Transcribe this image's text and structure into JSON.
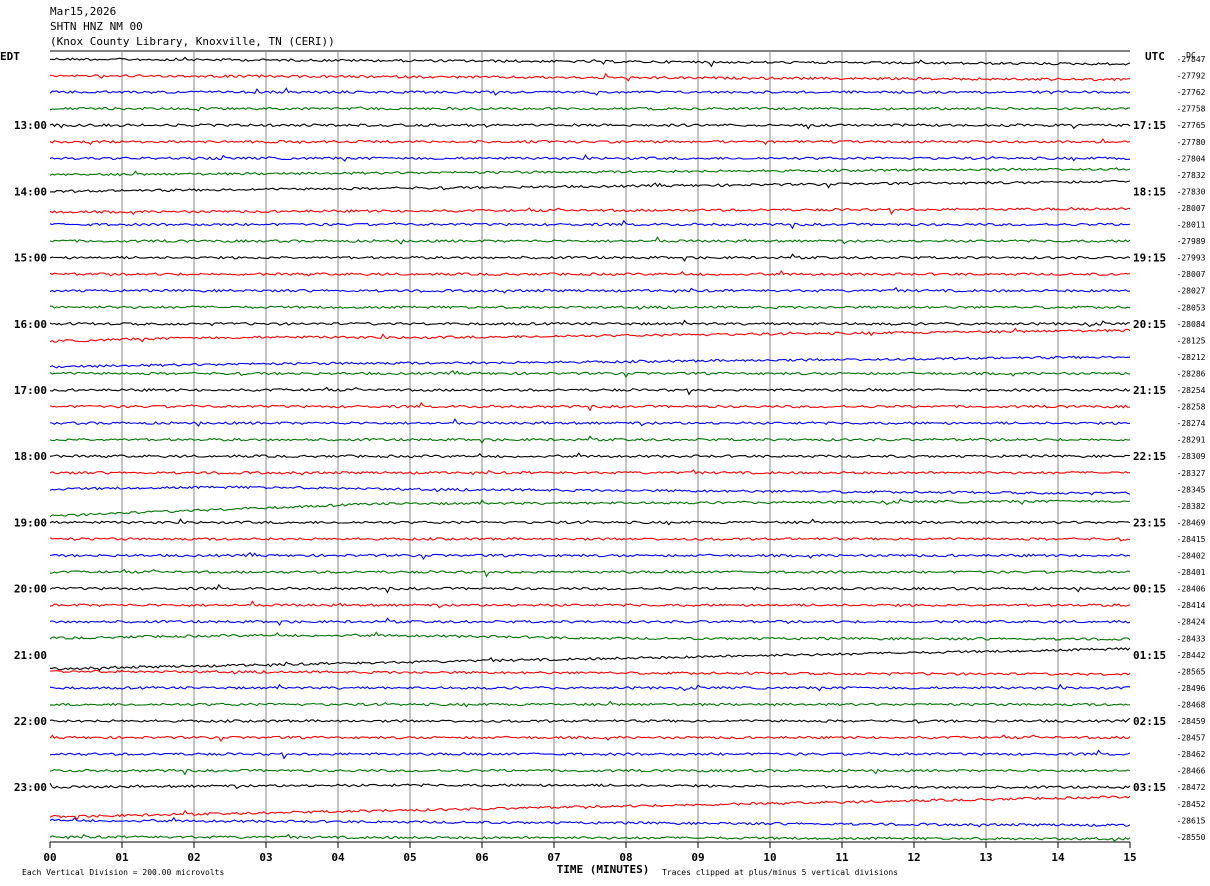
{
  "header": {
    "date": "Mar15,2026",
    "station": "SHTN HNZ NM 00",
    "location": "(Knox County Library, Knoxville, TN (CERI))"
  },
  "chart_data": {
    "type": "line",
    "subtype": "helicorder",
    "left_timezone": "EDT",
    "right_timezone": "UTC",
    "right_column_unit": "DC",
    "xlabel": "TIME (MINUTES)",
    "xlim": [
      0,
      15
    ],
    "x_ticks": [
      "00",
      "01",
      "02",
      "03",
      "04",
      "05",
      "06",
      "07",
      "08",
      "09",
      "10",
      "11",
      "12",
      "13",
      "14",
      "15"
    ],
    "left_hour_labels": [
      "13:00",
      "14:00",
      "15:00",
      "16:00",
      "17:00",
      "18:00",
      "19:00",
      "20:00",
      "21:00",
      "22:00",
      "23:00"
    ],
    "right_hour_labels": [
      "17:15",
      "18:15",
      "19:15",
      "20:15",
      "21:15",
      "22:15",
      "23:15",
      "00:15",
      "01:15",
      "02:15",
      "03:15"
    ],
    "first_labeled_trace_index": 4,
    "traces_per_hour": 4,
    "trace_colors": [
      "#000000",
      "#ff0000",
      "#0000ff",
      "#007700"
    ],
    "dc_offsets": [
      -27847,
      -27792,
      -27762,
      -27758,
      -27765,
      -27780,
      -27804,
      -27832,
      -27830,
      -28007,
      -28011,
      -27989,
      -27993,
      -28007,
      -28027,
      -28053,
      -28084,
      -28125,
      -28212,
      -28286,
      -28254,
      -28258,
      -28274,
      -28291,
      -28309,
      -28327,
      -28345,
      -28382,
      -28469,
      -28415,
      -28402,
      -28401,
      -28406,
      -28414,
      -28424,
      -28433,
      -28442,
      -28565,
      -28496,
      -28468,
      -28459,
      -28457,
      -28462,
      -28466,
      -28472,
      -28452,
      -28615,
      -28550
    ],
    "footer_left": "Each Vertical Division =  200.00 microvolts",
    "footer_right": "Traces clipped at plus/minus 5 vertical divisions"
  }
}
